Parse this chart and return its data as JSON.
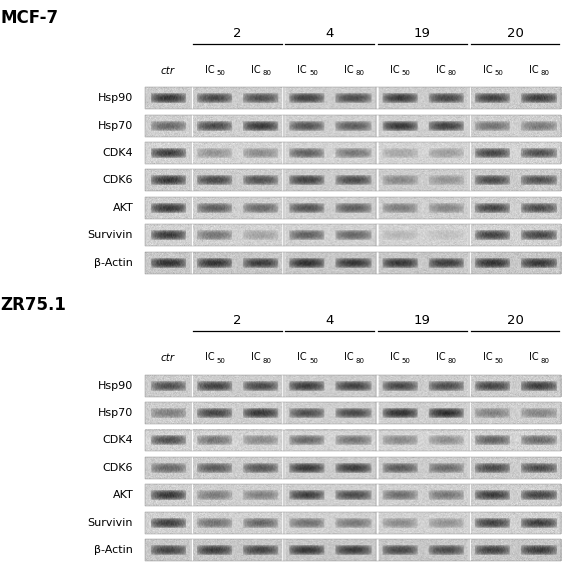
{
  "panel1_title": "MCF-7",
  "panel2_title": "ZR75.1",
  "compound_labels": [
    "2",
    "4",
    "19",
    "20"
  ],
  "row_labels": [
    "Hsp90",
    "Hsp70",
    "CDK4",
    "CDK6",
    "AKT",
    "Survivin",
    "β-Actin"
  ],
  "bg_color": "#ffffff",
  "panel1_bands": {
    "Hsp90": [
      0.82,
      0.72,
      0.68,
      0.75,
      0.7,
      0.78,
      0.73,
      0.76,
      0.78
    ],
    "Hsp70": [
      0.55,
      0.72,
      0.82,
      0.67,
      0.62,
      0.83,
      0.78,
      0.5,
      0.46
    ],
    "CDK4": [
      0.82,
      0.35,
      0.4,
      0.62,
      0.5,
      0.25,
      0.3,
      0.78,
      0.72
    ],
    "CDK6": [
      0.82,
      0.72,
      0.68,
      0.76,
      0.7,
      0.38,
      0.3,
      0.72,
      0.68
    ],
    "AKT": [
      0.82,
      0.62,
      0.55,
      0.68,
      0.62,
      0.45,
      0.4,
      0.75,
      0.72
    ],
    "Survivin": [
      0.82,
      0.5,
      0.25,
      0.62,
      0.58,
      0.15,
      0.1,
      0.78,
      0.76
    ],
    "b-Actin": [
      0.82,
      0.8,
      0.76,
      0.83,
      0.79,
      0.8,
      0.76,
      0.81,
      0.79
    ]
  },
  "panel2_bands": {
    "Hsp90": [
      0.68,
      0.76,
      0.72,
      0.78,
      0.75,
      0.73,
      0.7,
      0.74,
      0.78
    ],
    "Hsp70": [
      0.45,
      0.75,
      0.83,
      0.7,
      0.73,
      0.86,
      0.88,
      0.42,
      0.4
    ],
    "CDK4": [
      0.72,
      0.52,
      0.42,
      0.58,
      0.52,
      0.42,
      0.38,
      0.63,
      0.58
    ],
    "CDK6": [
      0.55,
      0.62,
      0.65,
      0.8,
      0.78,
      0.62,
      0.52,
      0.72,
      0.7
    ],
    "AKT": [
      0.82,
      0.45,
      0.42,
      0.78,
      0.72,
      0.52,
      0.48,
      0.8,
      0.76
    ],
    "Survivin": [
      0.8,
      0.52,
      0.58,
      0.52,
      0.48,
      0.38,
      0.35,
      0.78,
      0.8
    ],
    "b-Actin": [
      0.72,
      0.76,
      0.72,
      0.79,
      0.76,
      0.7,
      0.68,
      0.73,
      0.76
    ]
  },
  "separator_after_cols": [
    0,
    2,
    4,
    6
  ],
  "gel_bg_color": "#c8c8c8",
  "gel_bg_light": "#d5d5d5",
  "band_bg_colors_p1": {
    "Hsp90": [
      "#b8b8b8",
      "#b8b8b8",
      "#b8b8b8",
      "#b8b8b8",
      "#b8b8b8",
      "#b8b8b8",
      "#b8b8b8",
      "#b8b8b8",
      "#b8b8b8"
    ],
    "Hsp70": [
      "#bcbcbc",
      "#bcbcbc",
      "#bcbcbc",
      "#bcbcbc",
      "#bcbcbc",
      "#bcbcbc",
      "#bcbcbc",
      "#bcbcbc",
      "#bcbcbc"
    ],
    "CDK4": [
      "#cccccc",
      "#d0d0d0",
      "#d0d0d0",
      "#cccccc",
      "#d0d0d0",
      "#d4d4d4",
      "#d4d4d4",
      "#cccccc",
      "#cccccc"
    ],
    "CDK6": [
      "#bebebe",
      "#bebebe",
      "#bebebe",
      "#bebebe",
      "#bebebe",
      "#c8c8c8",
      "#c8c8c8",
      "#bebebe",
      "#bebebe"
    ],
    "AKT": [
      "#c0c0c0",
      "#c8c8c8",
      "#c8c8c8",
      "#c4c4c4",
      "#c4c4c4",
      "#cccccc",
      "#cccccc",
      "#c2c2c2",
      "#c2c2c2"
    ],
    "Survivin": [
      "#c4c4c4",
      "#c8c8c8",
      "#cccccc",
      "#c8c8c8",
      "#c8c8c8",
      "#d0d0d0",
      "#d0d0d0",
      "#c4c4c4",
      "#c4c4c4"
    ],
    "b-Actin": [
      "#b0b0b0",
      "#b0b0b0",
      "#b0b0b0",
      "#b0b0b0",
      "#b0b0b0",
      "#b0b0b0",
      "#b0b0b0",
      "#b0b0b0",
      "#b0b0b0"
    ]
  }
}
